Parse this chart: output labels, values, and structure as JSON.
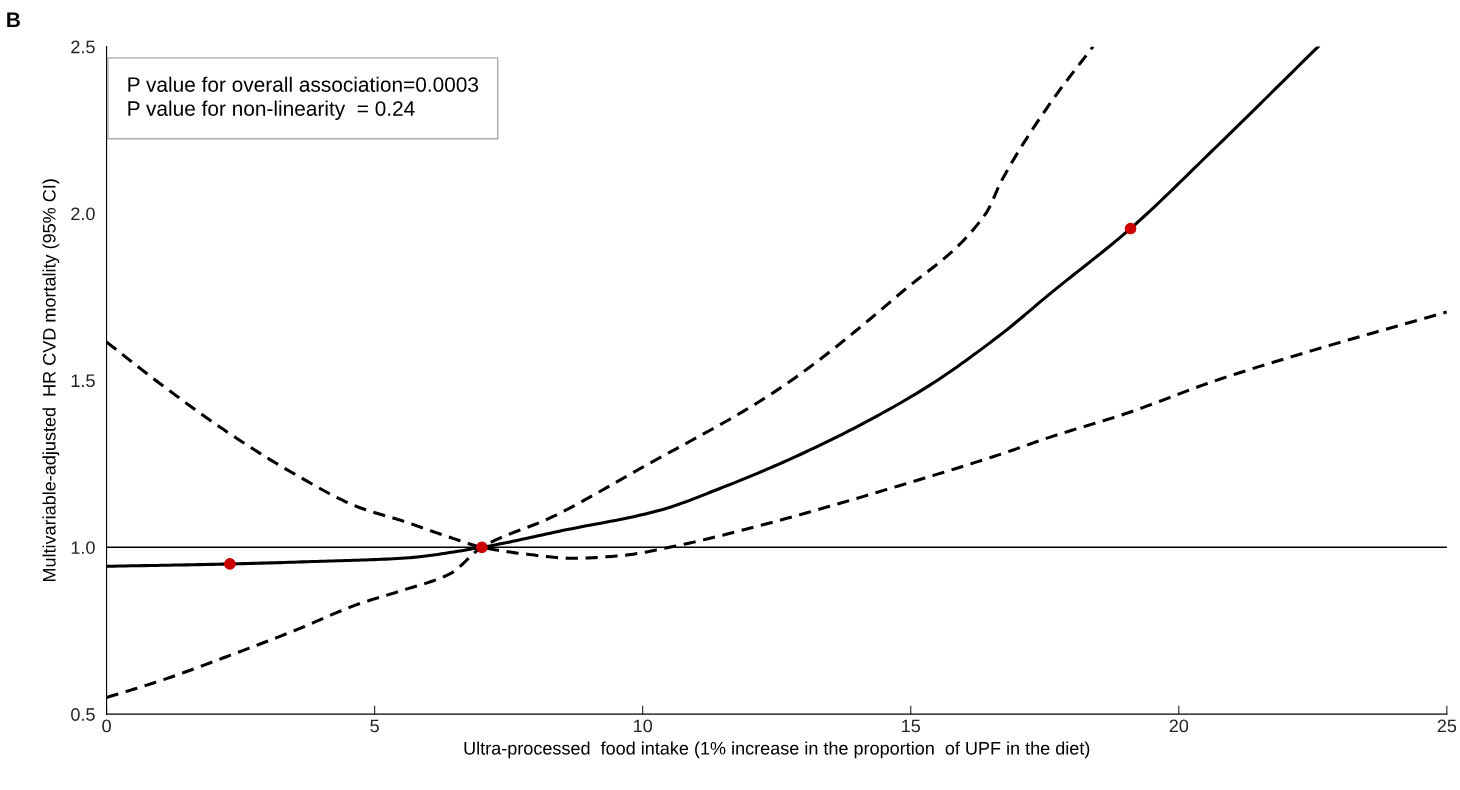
{
  "chart_data": {
    "type": "line",
    "xlabel": "Ultra-processed  food intake (1% increase in the proportion  of UPF in the diet)",
    "ylabel": "Multivariable-adjusted  HR CVD mortality (95% CI)",
    "xlim": [
      0,
      25
    ],
    "xticks": [
      0,
      5,
      10,
      15,
      20,
      25
    ],
    "ylim": [
      0.5,
      2.5
    ],
    "yticks": [
      {
        "value": 0.5,
        "label": "0.5"
      },
      {
        "value": 1.0,
        "label": "1.0"
      },
      {
        "value": 1.5,
        "label": "1.5"
      },
      {
        "value": 2.0,
        "label": "2.0"
      },
      {
        "value": 2.5,
        "label": "2.5"
      }
    ],
    "grid": false,
    "legend": false,
    "marker": "none",
    "series": [
      {
        "color": "#000000",
        "line_style": "solid",
        "x": [
          0,
          2.3,
          4,
          5.5,
          7,
          8.5,
          10.3,
          11.5,
          13.1,
          15.2,
          16.7,
          17.6,
          19.1,
          20.7,
          22.6
        ],
        "values": [
          0.943,
          0.95,
          0.958,
          0.967,
          1.0,
          1.05,
          1.11,
          1.18,
          1.29,
          1.47,
          1.64,
          1.76,
          1.955,
          2.2,
          2.5
        ]
      },
      {
        "color": "#000000",
        "line_style": "dashed",
        "x": [
          0,
          1,
          2.3,
          3.5,
          4.7,
          5.5,
          6.4,
          7,
          7.8,
          8.7,
          9.6,
          10.5,
          12.3,
          14.9,
          16.7,
          17.6,
          19,
          20.7,
          22.5,
          25
        ],
        "values": [
          1.615,
          1.49,
          1.34,
          1.22,
          1.12,
          1.08,
          1.03,
          1.0,
          0.98,
          0.967,
          0.975,
          1.0,
          1.07,
          1.19,
          1.28,
          1.33,
          1.4,
          1.5,
          1.59,
          1.705
        ]
      },
      {
        "color": "#000000",
        "line_style": "dashed",
        "x": [
          0,
          1,
          2.3,
          3.5,
          4.7,
          5.5,
          6.4,
          7,
          8.3,
          10,
          12.5,
          14.8,
          16.4,
          16.7,
          17.6,
          18.4
        ],
        "values": [
          0.55,
          0.6,
          0.676,
          0.75,
          0.83,
          0.87,
          0.92,
          1.0,
          1.09,
          1.24,
          1.47,
          1.76,
          2.0,
          2.1,
          2.33,
          2.5
        ]
      },
      {
        "type": "scatter",
        "color": "#cc0000",
        "marker": "circle",
        "x": [
          2.3,
          7,
          19.1
        ],
        "values": [
          0.95,
          1.0,
          1.955
        ]
      }
    ],
    "ref_lines": [
      {
        "axis": "y",
        "value": 1.0,
        "color": "#000000",
        "line_style": "solid"
      }
    ],
    "annotations": [
      "B",
      "P value for overall association=0.0003\nP value for non-linearity  = 0.24"
    ]
  }
}
